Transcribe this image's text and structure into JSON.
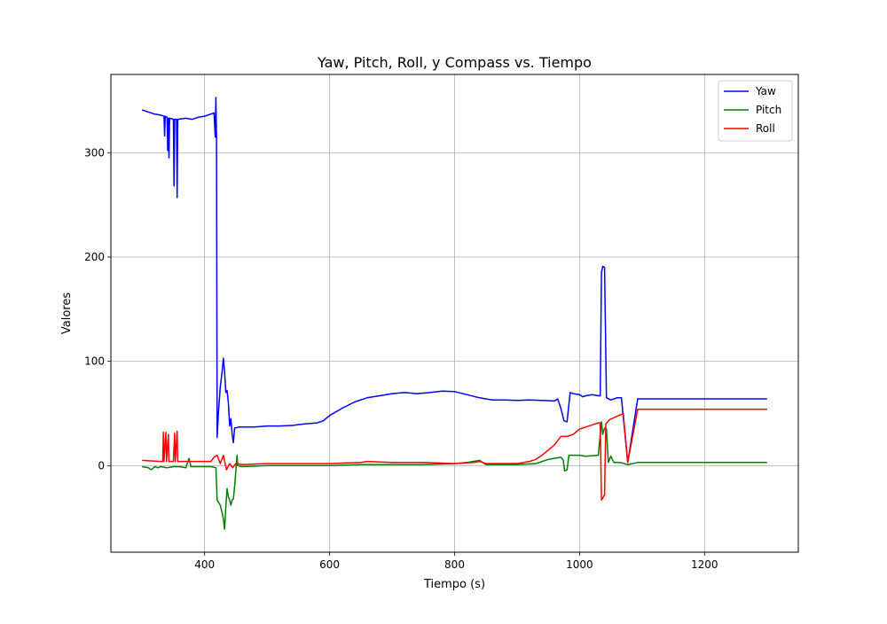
{
  "chart_data": {
    "type": "line",
    "title": "Yaw, Pitch, Roll, y Compass vs. Tiempo",
    "xlabel": "Tiempo (s)",
    "ylabel": "Valores",
    "xlim": [
      250,
      1350
    ],
    "ylim": [
      -83,
      375
    ],
    "xticks": [
      400,
      600,
      800,
      1000,
      1200
    ],
    "yticks": [
      0,
      100,
      200,
      300
    ],
    "grid": true,
    "legend_position": "top-right",
    "series": [
      {
        "name": "Yaw",
        "color": "#0000ff",
        "points": [
          [
            300,
            341
          ],
          [
            310,
            339
          ],
          [
            320,
            337
          ],
          [
            330,
            336
          ],
          [
            335,
            335
          ],
          [
            336,
            316
          ],
          [
            337,
            335
          ],
          [
            340,
            334
          ],
          [
            341,
            302
          ],
          [
            342,
            333
          ],
          [
            343,
            295
          ],
          [
            344,
            333
          ],
          [
            350,
            332
          ],
          [
            351,
            268
          ],
          [
            352,
            332
          ],
          [
            355,
            332
          ],
          [
            356,
            257
          ],
          [
            357,
            332
          ],
          [
            370,
            333
          ],
          [
            380,
            332
          ],
          [
            390,
            334
          ],
          [
            400,
            335
          ],
          [
            410,
            337
          ],
          [
            415,
            338
          ],
          [
            417,
            315
          ],
          [
            418,
            353
          ],
          [
            419,
            315
          ],
          [
            420,
            27
          ],
          [
            422,
            50
          ],
          [
            425,
            75
          ],
          [
            428,
            90
          ],
          [
            430,
            103
          ],
          [
            432,
            90
          ],
          [
            434,
            70
          ],
          [
            436,
            72
          ],
          [
            438,
            60
          ],
          [
            440,
            38
          ],
          [
            442,
            45
          ],
          [
            444,
            30
          ],
          [
            446,
            22
          ],
          [
            448,
            36
          ],
          [
            455,
            37
          ],
          [
            480,
            37
          ],
          [
            500,
            38
          ],
          [
            520,
            38
          ],
          [
            540,
            38.5
          ],
          [
            560,
            40
          ],
          [
            580,
            41
          ],
          [
            590,
            43
          ],
          [
            600,
            48
          ],
          [
            620,
            55
          ],
          [
            640,
            61
          ],
          [
            660,
            65
          ],
          [
            680,
            67
          ],
          [
            700,
            69
          ],
          [
            720,
            70
          ],
          [
            740,
            69
          ],
          [
            760,
            70
          ],
          [
            780,
            71.5
          ],
          [
            800,
            71
          ],
          [
            820,
            68
          ],
          [
            840,
            65
          ],
          [
            860,
            63
          ],
          [
            880,
            63
          ],
          [
            900,
            62.5
          ],
          [
            920,
            63
          ],
          [
            940,
            62.5
          ],
          [
            960,
            62
          ],
          [
            965,
            64
          ],
          [
            970,
            55
          ],
          [
            975,
            43
          ],
          [
            980,
            42
          ],
          [
            985,
            70
          ],
          [
            990,
            69
          ],
          [
            1000,
            68
          ],
          [
            1005,
            66
          ],
          [
            1010,
            67
          ],
          [
            1020,
            68
          ],
          [
            1030,
            67
          ],
          [
            1033,
            67
          ],
          [
            1035,
            185
          ],
          [
            1037,
            191
          ],
          [
            1040,
            190
          ],
          [
            1043,
            65
          ],
          [
            1050,
            63
          ],
          [
            1055,
            64
          ],
          [
            1060,
            65
          ],
          [
            1067,
            65
          ],
          [
            1077,
            3
          ],
          [
            1093,
            64
          ],
          [
            1200,
            64
          ],
          [
            1300,
            64
          ]
        ]
      },
      {
        "name": "Pitch",
        "color": "#008000",
        "points": [
          [
            300,
            -1
          ],
          [
            310,
            -2
          ],
          [
            315,
            -4
          ],
          [
            320,
            -1
          ],
          [
            325,
            -2
          ],
          [
            330,
            -1
          ],
          [
            340,
            -2
          ],
          [
            350,
            -1
          ],
          [
            360,
            -1
          ],
          [
            370,
            -2
          ],
          [
            375,
            7
          ],
          [
            378,
            -1
          ],
          [
            390,
            -1
          ],
          [
            400,
            -1
          ],
          [
            410,
            -1
          ],
          [
            418,
            -2
          ],
          [
            420,
            -33
          ],
          [
            422,
            -35
          ],
          [
            425,
            -38
          ],
          [
            428,
            -45
          ],
          [
            430,
            -51
          ],
          [
            432,
            -61
          ],
          [
            434,
            -40
          ],
          [
            436,
            -22
          ],
          [
            438,
            -30
          ],
          [
            440,
            -33
          ],
          [
            442,
            -38
          ],
          [
            444,
            -33
          ],
          [
            446,
            -32
          ],
          [
            448,
            -20
          ],
          [
            450,
            -5
          ],
          [
            452,
            10
          ],
          [
            453,
            0
          ],
          [
            460,
            -1
          ],
          [
            500,
            0
          ],
          [
            550,
            0
          ],
          [
            600,
            0
          ],
          [
            650,
            1
          ],
          [
            700,
            1
          ],
          [
            750,
            1
          ],
          [
            800,
            2
          ],
          [
            820,
            3
          ],
          [
            840,
            5
          ],
          [
            850,
            1
          ],
          [
            900,
            1
          ],
          [
            930,
            2
          ],
          [
            950,
            6
          ],
          [
            970,
            8
          ],
          [
            974,
            5
          ],
          [
            976,
            -5
          ],
          [
            980,
            -4
          ],
          [
            983,
            10
          ],
          [
            1000,
            10
          ],
          [
            1010,
            9
          ],
          [
            1030,
            10
          ],
          [
            1035,
            42
          ],
          [
            1037,
            30
          ],
          [
            1040,
            36
          ],
          [
            1043,
            35
          ],
          [
            1046,
            3
          ],
          [
            1050,
            9
          ],
          [
            1055,
            3
          ],
          [
            1065,
            3
          ],
          [
            1077,
            1
          ],
          [
            1093,
            3
          ],
          [
            1200,
            3
          ],
          [
            1300,
            3
          ]
        ]
      },
      {
        "name": "Roll",
        "color": "#ff0000",
        "points": [
          [
            300,
            5
          ],
          [
            330,
            4
          ],
          [
            333,
            4
          ],
          [
            334,
            32
          ],
          [
            335,
            4
          ],
          [
            338,
            32
          ],
          [
            339,
            4
          ],
          [
            342,
            30
          ],
          [
            343,
            4
          ],
          [
            350,
            4
          ],
          [
            352,
            31
          ],
          [
            353,
            4
          ],
          [
            356,
            33
          ],
          [
            357,
            4
          ],
          [
            380,
            4
          ],
          [
            400,
            4
          ],
          [
            410,
            4
          ],
          [
            415,
            8
          ],
          [
            420,
            10
          ],
          [
            425,
            2
          ],
          [
            430,
            10
          ],
          [
            435,
            -4
          ],
          [
            440,
            2
          ],
          [
            445,
            -2
          ],
          [
            450,
            2
          ],
          [
            460,
            1
          ],
          [
            500,
            2
          ],
          [
            550,
            2
          ],
          [
            600,
            2
          ],
          [
            650,
            3
          ],
          [
            660,
            4
          ],
          [
            700,
            3
          ],
          [
            750,
            3
          ],
          [
            800,
            2
          ],
          [
            830,
            3
          ],
          [
            840,
            4
          ],
          [
            850,
            2
          ],
          [
            880,
            2
          ],
          [
            900,
            2
          ],
          [
            920,
            4
          ],
          [
            930,
            6
          ],
          [
            940,
            10
          ],
          [
            950,
            15
          ],
          [
            960,
            20
          ],
          [
            970,
            28
          ],
          [
            980,
            28
          ],
          [
            990,
            30
          ],
          [
            1000,
            35
          ],
          [
            1020,
            39
          ],
          [
            1030,
            41
          ],
          [
            1033,
            41
          ],
          [
            1035,
            -33
          ],
          [
            1038,
            -30
          ],
          [
            1040,
            -28
          ],
          [
            1042,
            40
          ],
          [
            1048,
            44
          ],
          [
            1055,
            46
          ],
          [
            1070,
            50
          ],
          [
            1077,
            3
          ],
          [
            1093,
            54
          ],
          [
            1200,
            54
          ],
          [
            1300,
            54
          ]
        ]
      }
    ]
  }
}
